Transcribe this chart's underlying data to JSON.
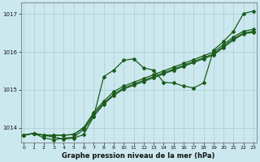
{
  "xlabel": "Graphe pression niveau de la mer (hPa)",
  "bg_color": "#cce8ef",
  "grid_color": "#aacccc",
  "line_color": "#1a5c1a",
  "yticks": [
    1014,
    1015,
    1016,
    1017
  ],
  "xticks": [
    0,
    1,
    2,
    3,
    4,
    5,
    6,
    7,
    8,
    9,
    10,
    11,
    12,
    13,
    14,
    15,
    16,
    17,
    18,
    19,
    20,
    21,
    22,
    23
  ],
  "ylim_low": 1013.6,
  "ylim_high": 1017.3,
  "line1": [
    1013.8,
    1013.85,
    1013.8,
    1013.75,
    1013.7,
    1013.72,
    1013.82,
    1014.3,
    1015.35,
    1015.52,
    1015.78,
    1015.82,
    1015.58,
    1015.52,
    1015.2,
    1015.18,
    1015.1,
    1015.05,
    1015.18,
    1016.05,
    1016.28,
    1016.55,
    1017.02,
    1017.08
  ],
  "line2": [
    1013.8,
    1013.85,
    1013.8,
    1013.8,
    1013.8,
    1013.82,
    1014.0,
    1014.4,
    1014.7,
    1014.95,
    1015.1,
    1015.2,
    1015.3,
    1015.4,
    1015.5,
    1015.6,
    1015.7,
    1015.8,
    1015.9,
    1016.0,
    1016.2,
    1016.4,
    1016.55,
    1016.6
  ],
  "line3": [
    1013.8,
    1013.85,
    1013.8,
    1013.8,
    1013.8,
    1013.82,
    1014.0,
    1014.35,
    1014.65,
    1014.88,
    1015.05,
    1015.15,
    1015.25,
    1015.35,
    1015.45,
    1015.55,
    1015.65,
    1015.75,
    1015.85,
    1015.95,
    1016.15,
    1016.35,
    1016.5,
    1016.55
  ],
  "line4": [
    1013.8,
    1013.85,
    1013.73,
    1013.68,
    1013.72,
    1013.75,
    1013.95,
    1014.3,
    1014.62,
    1014.85,
    1015.02,
    1015.12,
    1015.22,
    1015.32,
    1015.42,
    1015.52,
    1015.62,
    1015.72,
    1015.82,
    1015.92,
    1016.12,
    1016.32,
    1016.48,
    1016.52
  ]
}
